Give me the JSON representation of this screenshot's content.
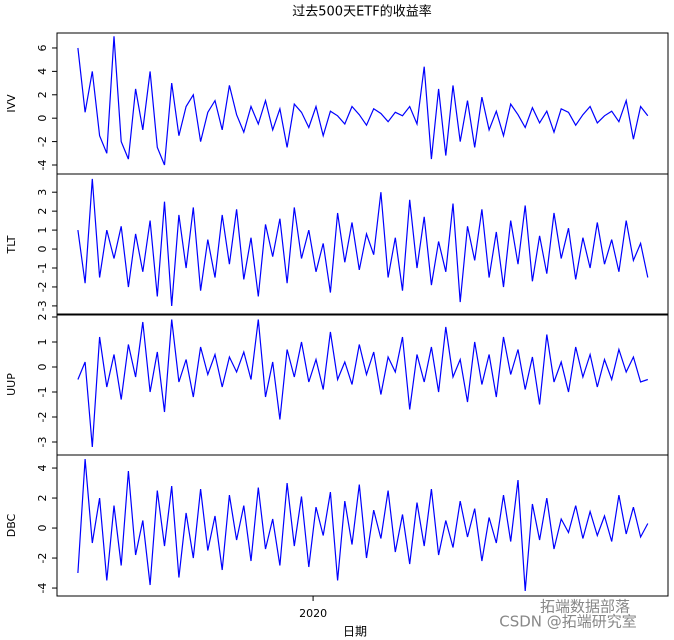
{
  "chart_data": [
    {
      "type": "line",
      "title": "过去500天ETF的收益率",
      "ylabel": "IVV",
      "color": "#0000ff",
      "ylim": [
        -4.77,
        7.28
      ],
      "yticks": [
        -4,
        -2,
        0,
        2,
        4,
        6
      ],
      "xlim": [
        -2.9,
        81.8
      ],
      "values": [
        6,
        0.5,
        4,
        -1.5,
        -3,
        7,
        -2,
        -3.5,
        2.5,
        -1,
        4,
        -2.5,
        -4,
        3,
        -1.5,
        1,
        2,
        -2,
        0.5,
        1.5,
        -1,
        2.8,
        0.3,
        -1.2,
        1,
        -0.5,
        1.5,
        -1,
        0.8,
        -2.5,
        1.2,
        0.5,
        -0.8,
        1,
        -1.5,
        0.6,
        0.2,
        -0.5,
        1,
        0.3,
        -0.6,
        0.8,
        0.4,
        -0.3,
        0.5,
        0.2,
        1,
        -0.5,
        4.4,
        -3.5,
        2.5,
        -3.2,
        2.8,
        -2,
        1.5,
        -2.5,
        1.8,
        -1,
        0.6,
        -1.5,
        1.2,
        0.3,
        -0.8,
        0.9,
        -0.4,
        0.6,
        -1.2,
        0.8,
        0.5,
        -0.6,
        0.3,
        1,
        -0.4,
        0.2,
        0.6,
        -0.3,
        1.5,
        -1.8,
        1,
        0.2
      ]
    },
    {
      "type": "line",
      "ylabel": "TLT",
      "color": "#0000ff",
      "ylim": [
        -3.48,
        3.96
      ],
      "yticks": [
        -3,
        -2,
        -1,
        0,
        1,
        2,
        3
      ],
      "xlim": [
        -2.9,
        81.8
      ],
      "values": [
        1,
        -1.8,
        3.7,
        -1.5,
        1,
        -0.5,
        1.2,
        -2,
        0.8,
        -1.2,
        1.5,
        -2.5,
        2.5,
        -3,
        1.8,
        -1,
        2.2,
        -2.2,
        0.5,
        -1.5,
        1.8,
        -0.8,
        2.1,
        -1.6,
        0.6,
        -2.5,
        1.3,
        -0.4,
        1.6,
        -1.8,
        2.2,
        -0.5,
        1,
        -1.2,
        0.3,
        -2.3,
        1.9,
        -0.7,
        1.4,
        -1.1,
        0.8,
        -0.3,
        3,
        -1.5,
        0.6,
        -2.2,
        2.6,
        -1,
        1.7,
        -1.9,
        0.4,
        -1.2,
        2.4,
        -2.8,
        1.2,
        -0.6,
        2.1,
        -1.5,
        0.9,
        -2,
        1.5,
        -0.8,
        2.3,
        -1.7,
        0.7,
        -1.3,
        1.9,
        -0.5,
        1.1,
        -1.6,
        0.6,
        -1,
        1.4,
        -0.8,
        0.5,
        -1.2,
        1.5,
        -0.6,
        0.3,
        -1.5
      ]
    },
    {
      "type": "line",
      "ylabel": "UUP",
      "color": "#0000ff",
      "ylim": [
        -3.52,
        2.12
      ],
      "yticks": [
        -3,
        -2,
        -1,
        0,
        1,
        2
      ],
      "xlim": [
        -2.9,
        81.8
      ],
      "values": [
        -0.5,
        0.2,
        -3.2,
        1.2,
        -0.8,
        0.5,
        -1.3,
        0.9,
        -0.4,
        1.8,
        -1,
        0.6,
        -1.8,
        1.9,
        -0.6,
        0.3,
        -1.2,
        0.8,
        -0.3,
        0.5,
        -0.8,
        0.4,
        -0.2,
        0.6,
        -0.5,
        1.9,
        -1.2,
        0.2,
        -2.1,
        0.7,
        -0.4,
        1,
        -0.6,
        0.3,
        -0.9,
        1.4,
        -0.5,
        0.2,
        -0.7,
        0.9,
        -0.3,
        0.6,
        -1.1,
        0.4,
        -0.2,
        1.2,
        -1.7,
        0.5,
        -0.6,
        0.8,
        -1,
        1.6,
        -0.4,
        0.3,
        -1.4,
        1,
        -0.7,
        0.5,
        -1.2,
        1.2,
        -0.3,
        0.7,
        -0.9,
        0.4,
        -1.5,
        1.3,
        -0.6,
        0.2,
        -1,
        0.8,
        -0.4,
        0.5,
        -0.8,
        0.3,
        -0.5,
        0.7,
        -0.2,
        0.4,
        -0.6,
        -0.5
      ]
    },
    {
      "type": "line",
      "ylabel": "DBC",
      "xlabel": "日期",
      "color": "#0000ff",
      "ylim": [
        -4.53,
        4.87
      ],
      "yticks": [
        -4,
        -2,
        0,
        2,
        4
      ],
      "xlim": [
        -2.9,
        81.8
      ],
      "xticks": [
        {
          "value": 32.6,
          "label": "2020"
        }
      ],
      "values": [
        -3,
        4.6,
        -1,
        2,
        -3.5,
        1.5,
        -2.5,
        3.8,
        -1.8,
        0.5,
        -3.8,
        2.5,
        -1.2,
        2.8,
        -3.3,
        1,
        -2,
        2.6,
        -1.5,
        0.8,
        -2.8,
        2.2,
        -0.8,
        1.5,
        -2.2,
        2.7,
        -1.4,
        0.6,
        -2.5,
        3,
        -1.2,
        2.1,
        -2.6,
        1.4,
        -0.5,
        2.4,
        -3.5,
        1.8,
        -1.1,
        2.9,
        -2,
        1.2,
        -0.7,
        2.5,
        -1.6,
        0.9,
        -2.4,
        1.7,
        -1.2,
        2.6,
        -1.8,
        0.5,
        -1.3,
        1.8,
        -0.6,
        1.3,
        -2.2,
        0.7,
        -1,
        2.2,
        -0.9,
        3.2,
        -4.2,
        1.6,
        -0.8,
        2,
        -1.4,
        0.6,
        -0.3,
        1.5,
        -0.7,
        1.1,
        -0.5,
        0.8,
        -0.9,
        2.2,
        -0.4,
        1.4,
        -0.6,
        0.3
      ]
    }
  ],
  "watermark": [
    "拓端数据部落",
    "CSDN @拓端研究室"
  ]
}
